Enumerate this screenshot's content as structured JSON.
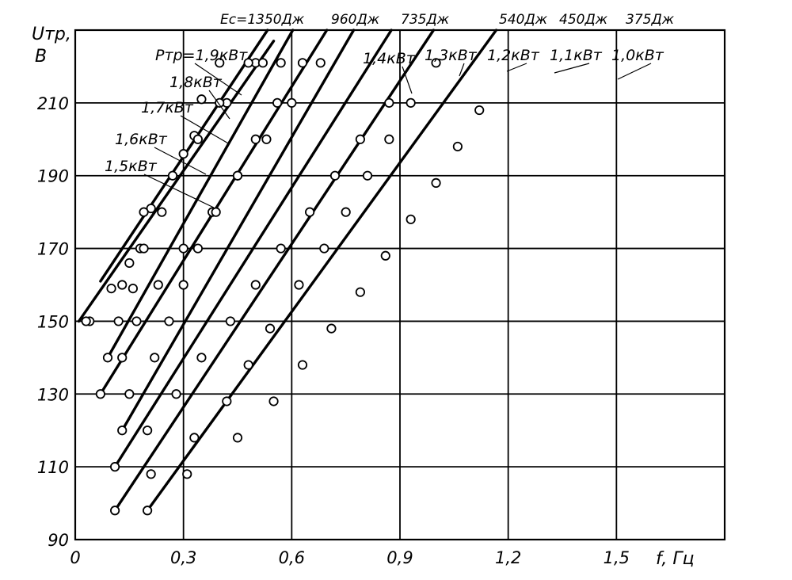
{
  "chart_data": {
    "type": "scatter",
    "xlabel": "f, Гц",
    "ylabel_main": "Uтр,",
    "ylabel_unit": "В",
    "xlim": [
      0,
      1.8
    ],
    "ylim": [
      90,
      230
    ],
    "x_ticks": [
      {
        "value": 0,
        "label": "0"
      },
      {
        "value": 0.3,
        "label": "0,3"
      },
      {
        "value": 0.6,
        "label": "0,6"
      },
      {
        "value": 0.9,
        "label": "0,9"
      },
      {
        "value": 1.2,
        "label": "1,2"
      },
      {
        "value": 1.5,
        "label": "1,5"
      }
    ],
    "y_ticks": [
      {
        "value": 90,
        "label": "90"
      },
      {
        "value": 110,
        "label": "110"
      },
      {
        "value": 130,
        "label": "130"
      },
      {
        "value": 150,
        "label": "150"
      },
      {
        "value": 170,
        "label": "170"
      },
      {
        "value": 190,
        "label": "190"
      },
      {
        "value": 210,
        "label": "210"
      }
    ],
    "grid": true,
    "series": [
      {
        "name": "Eс=1350Дж",
        "family": "energy",
        "points": [
          [
            0.04,
            150
          ],
          [
            0.13,
            160
          ],
          [
            0.18,
            170
          ],
          [
            0.21,
            181
          ],
          [
            0.33,
            201
          ],
          [
            0.35,
            211
          ],
          [
            0.4,
            221
          ]
        ],
        "line": [
          [
            0.07,
            161
          ],
          [
            0.6,
            240
          ]
        ]
      },
      {
        "name": "Pтр=1,9кВт",
        "family": "power",
        "points": [
          [
            0.03,
            150
          ],
          [
            0.1,
            159
          ],
          [
            0.15,
            166
          ],
          [
            0.19,
            180
          ],
          [
            0.3,
            196
          ],
          [
            0.42,
            210
          ],
          [
            0.5,
            221
          ]
        ],
        "line": [
          [
            0.01,
            150
          ],
          [
            0.55,
            227
          ]
        ]
      },
      {
        "name": "960Дж",
        "family": "energy",
        "points": [
          [
            0.09,
            140
          ],
          [
            0.12,
            150
          ],
          [
            0.16,
            159
          ],
          [
            0.19,
            170
          ],
          [
            0.24,
            180
          ],
          [
            0.27,
            190
          ],
          [
            0.34,
            200
          ],
          [
            0.4,
            210
          ],
          [
            0.48,
            221
          ],
          [
            0.52,
            221
          ],
          [
            0.57,
            221
          ]
        ],
        "line": [
          [
            0.09,
            140
          ],
          [
            0.66,
            240
          ]
        ]
      },
      {
        "name": "1,8кВт",
        "family": "power",
        "points": [
          [
            0.07,
            130
          ],
          [
            0.13,
            140
          ],
          [
            0.17,
            150
          ],
          [
            0.23,
            160
          ],
          [
            0.3,
            170
          ],
          [
            0.38,
            180
          ],
          [
            0.45,
            190
          ],
          [
            0.53,
            200
          ],
          [
            0.6,
            210
          ],
          [
            0.68,
            221
          ]
        ],
        "line": [
          [
            0.07,
            130
          ],
          [
            0.76,
            240
          ]
        ]
      },
      {
        "name": "735Дж",
        "family": "energy",
        "points": [
          [
            0.13,
            120
          ],
          [
            0.15,
            130
          ],
          [
            0.22,
            140
          ],
          [
            0.26,
            150
          ],
          [
            0.3,
            160
          ],
          [
            0.34,
            170
          ],
          [
            0.39,
            180
          ],
          [
            0.45,
            190
          ],
          [
            0.5,
            200
          ],
          [
            0.56,
            210
          ],
          [
            0.63,
            221
          ]
        ],
        "line": [
          [
            0.13,
            120
          ],
          [
            0.83,
            240
          ]
        ]
      },
      {
        "name": "1,7кВт",
        "family": "power",
        "points": [
          [
            0.11,
            110
          ],
          [
            0.2,
            120
          ],
          [
            0.28,
            130
          ],
          [
            0.35,
            140
          ],
          [
            0.43,
            150
          ],
          [
            0.5,
            160
          ],
          [
            0.57,
            170
          ],
          [
            0.65,
            180
          ],
          [
            0.72,
            190
          ],
          [
            0.79,
            200
          ],
          [
            0.87,
            210
          ]
        ],
        "line": [
          [
            0.11,
            110
          ],
          [
            0.94,
            240
          ]
        ]
      },
      {
        "name": "540Дж",
        "family": "energy",
        "points": [
          [
            0.11,
            98
          ],
          [
            0.21,
            108
          ],
          [
            0.33,
            118
          ],
          [
            0.42,
            128
          ],
          [
            0.48,
            138
          ],
          [
            0.54,
            148
          ],
          [
            0.62,
            160
          ],
          [
            0.69,
            170
          ],
          [
            0.75,
            180
          ],
          [
            0.81,
            190
          ],
          [
            0.87,
            200
          ],
          [
            0.93,
            210
          ],
          [
            1.0,
            221
          ]
        ],
        "line": [
          [
            0.11,
            98
          ],
          [
            1.06,
            240
          ]
        ]
      },
      {
        "name": "1,6кВт",
        "family": "power",
        "points": [
          [
            0.2,
            98
          ],
          [
            0.31,
            108
          ],
          [
            0.45,
            118
          ],
          [
            0.55,
            128
          ],
          [
            0.63,
            138
          ],
          [
            0.71,
            148
          ],
          [
            0.79,
            158
          ],
          [
            0.86,
            168
          ],
          [
            0.93,
            178
          ],
          [
            1.0,
            188
          ],
          [
            1.06,
            198
          ],
          [
            1.12,
            208
          ]
        ],
        "line": [
          [
            0.2,
            98
          ],
          [
            1.24,
            240
          ]
        ]
      }
    ],
    "power_labels": [
      "Pтр=1,9кВт",
      "1,8кВт",
      "1,7кВт",
      "1,6кВт",
      "1,5кВт",
      "1,4кВт",
      "1,3кВт",
      "1,2кВт",
      "1,1кВт",
      "1,0кВт"
    ],
    "energy_labels": [
      "Eс=1350Дж",
      "960Дж",
      "735Дж",
      "540Дж",
      "450Дж",
      "375Дж"
    ]
  }
}
